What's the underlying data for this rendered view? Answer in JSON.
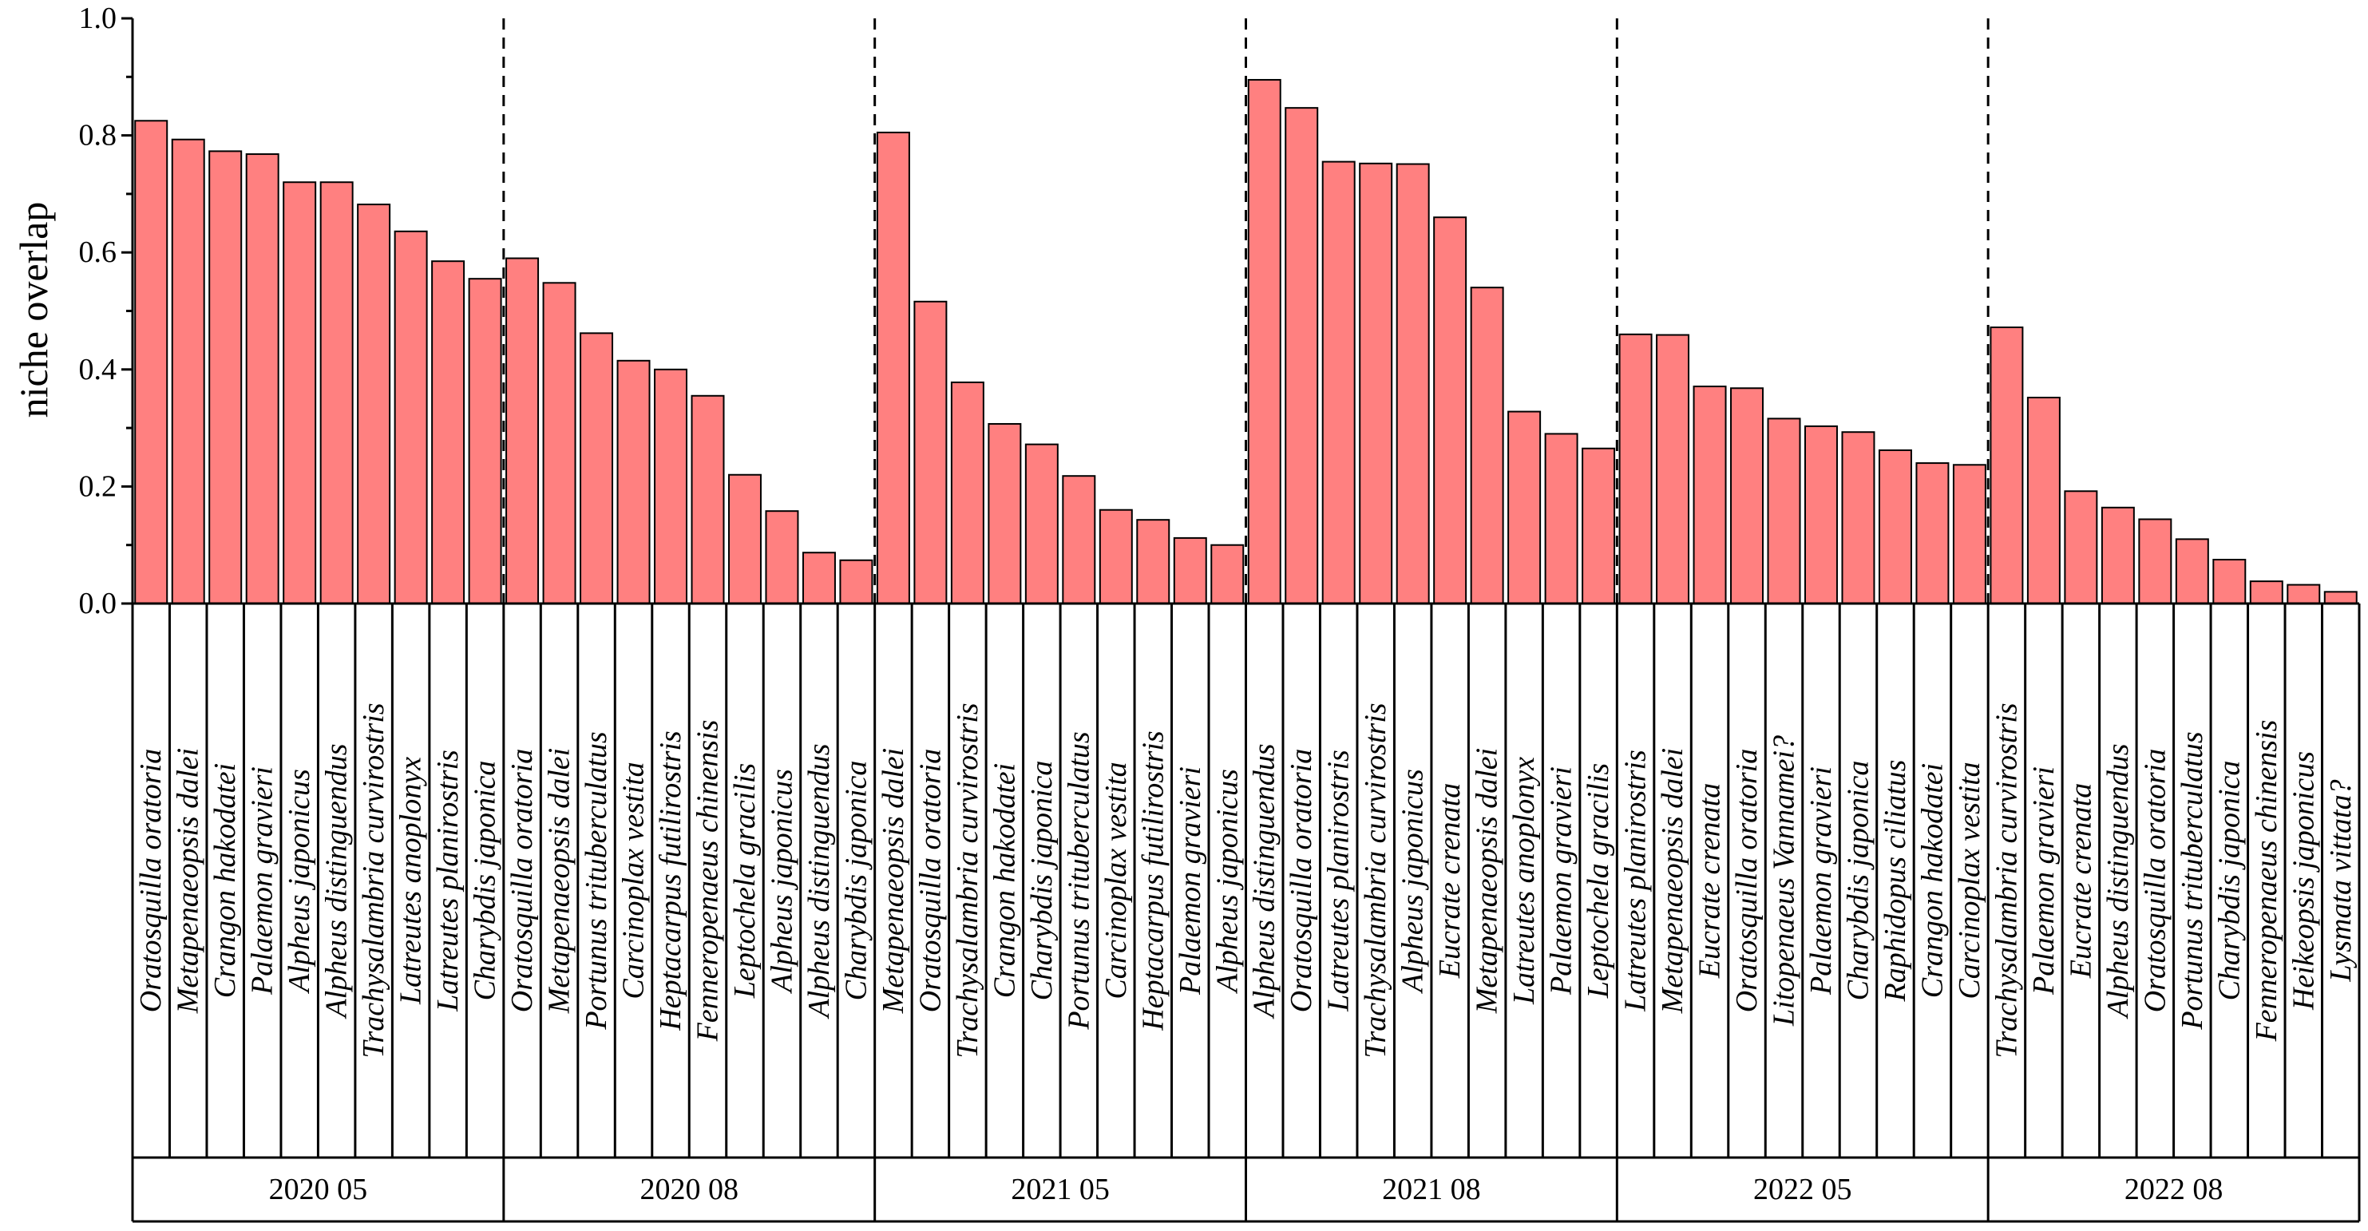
{
  "chart_data": {
    "type": "bar",
    "title": "",
    "xlabel": "",
    "ylabel": "niche overlap",
    "ylim": [
      0,
      1.0
    ],
    "yticks": [
      {
        "value": 0.0,
        "label": "0.0"
      },
      {
        "value": 0.2,
        "label": "0.2"
      },
      {
        "value": 0.4,
        "label": "0.4"
      },
      {
        "value": 0.6,
        "label": "0.6"
      },
      {
        "value": 0.8,
        "label": "0.8"
      },
      {
        "value": 1.0,
        "label": "1.0"
      }
    ],
    "grid": false,
    "bar_color": "#FF8080",
    "edge_color": "#000000",
    "groups": [
      {
        "name": "2020 05",
        "categories": [
          "Oratosquilla oratoria",
          "Metapenaeopsis dalei",
          "Crangon hakodatei",
          "Palaemon gravieri",
          "Alpheus japonicus",
          "Alpheus distinguendus",
          "Trachysalambria curvirostris",
          "Latreutes anoplonyx",
          "Latreutes planirostris",
          "Charybdis japonica"
        ],
        "values": [
          0.825,
          0.793,
          0.773,
          0.768,
          0.72,
          0.72,
          0.682,
          0.636,
          0.585,
          0.555
        ]
      },
      {
        "name": "2020 08",
        "categories": [
          "Oratosquilla oratoria",
          "Metapenaeopsis dalei",
          "Portunus trituberculatus",
          "Carcinoplax vestita",
          "Heptacarpus futilirostris",
          "Fenneropenaeus chinensis",
          "Leptochela gracilis",
          "Alpheus japonicus",
          "Alpheus distinguendus",
          "Charybdis japonica"
        ],
        "values": [
          0.59,
          0.548,
          0.462,
          0.415,
          0.4,
          0.355,
          0.22,
          0.158,
          0.087,
          0.074
        ]
      },
      {
        "name": "2021 05",
        "categories": [
          "Metapenaeopsis dalei",
          "Oratosquilla oratoria",
          "Trachysalambria curvirostris",
          "Crangon hakodatei",
          "Charybdis japonica",
          "Portunus trituberculatus",
          "Carcinoplax vestita",
          "Heptacarpus futilirostris",
          "Palaemon gravieri",
          "Alpheus japonicus"
        ],
        "values": [
          0.805,
          0.516,
          0.378,
          0.307,
          0.272,
          0.218,
          0.16,
          0.143,
          0.112,
          0.1
        ]
      },
      {
        "name": "2021 08",
        "categories": [
          "Alpheus distinguendus",
          "Oratosquilla oratoria",
          "Latreutes planirostris",
          "Trachysalambria curvirostris",
          "Alpheus japonicus",
          "Eucrate crenata",
          "Metapenaeopsis dalei",
          "Latreutes anoplonyx",
          "Palaemon gravieri",
          "Leptochela gracilis"
        ],
        "values": [
          0.895,
          0.847,
          0.755,
          0.752,
          0.751,
          0.66,
          0.54,
          0.328,
          0.29,
          0.265
        ]
      },
      {
        "name": "2022 05",
        "categories": [
          "Latreutes planirostris",
          "Metapenaeopsis dalei",
          "Eucrate crenata",
          "Oratosquilla oratoria",
          "Litopenaeus Vannamei?",
          "Palaemon gravieri",
          "Charybdis japonica",
          "Raphidopus ciliatus",
          "Crangon hakodatei",
          "Carcinoplax vestita"
        ],
        "values": [
          0.46,
          0.459,
          0.371,
          0.368,
          0.316,
          0.303,
          0.293,
          0.262,
          0.24,
          0.237
        ]
      },
      {
        "name": "2022 08",
        "categories": [
          "Trachysalambria curvirostris",
          "Palaemon gravieri",
          "Eucrate crenata",
          "Alpheus distinguendus",
          "Oratosquilla oratoria",
          "Portunus trituberculatus",
          "Charybdis japonica",
          "Fenneropenaeus chinensis",
          "Heikeopsis japonicus",
          "Lysmata vittata?"
        ],
        "values": [
          0.472,
          0.352,
          0.192,
          0.164,
          0.144,
          0.11,
          0.075,
          0.038,
          0.032,
          0.02
        ]
      }
    ]
  }
}
